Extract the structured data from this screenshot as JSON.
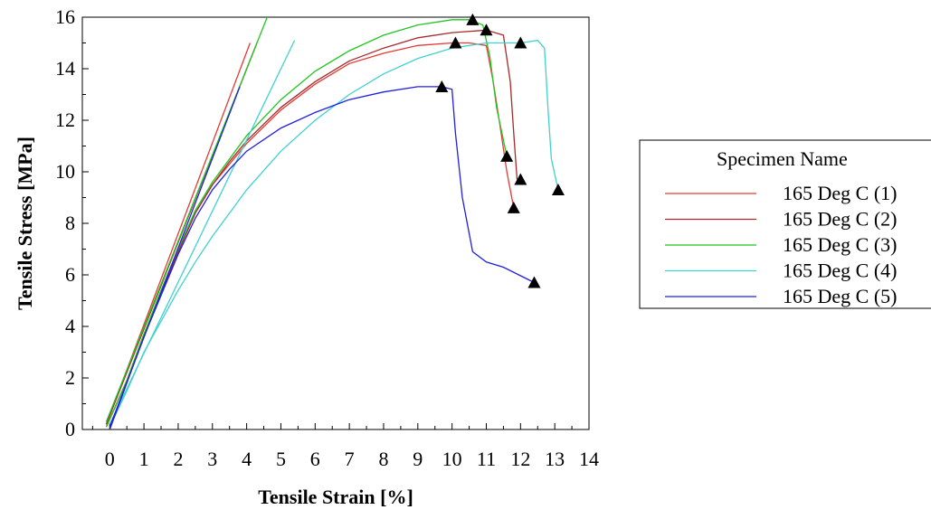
{
  "chart_data": {
    "type": "line",
    "xlabel": "Tensile Strain [%]",
    "ylabel": "Tensile Stress [MPa]",
    "xlim": [
      -0.8,
      14
    ],
    "ylim": [
      0,
      16
    ],
    "x_ticks": [
      0,
      1,
      2,
      3,
      4,
      5,
      6,
      7,
      8,
      9,
      10,
      11,
      12,
      13,
      14
    ],
    "y_ticks": [
      0,
      2,
      4,
      6,
      8,
      10,
      12,
      14,
      16
    ],
    "grid": false,
    "legend": {
      "title": "Specimen Name",
      "position": "right"
    },
    "series": [
      {
        "name": "165 Deg C (1)",
        "color": "#e53935",
        "points": [
          [
            -0.1,
            0.1
          ],
          [
            0.5,
            1.9
          ],
          [
            1.0,
            3.7
          ],
          [
            1.5,
            5.3
          ],
          [
            2.0,
            6.9
          ],
          [
            2.5,
            8.4
          ],
          [
            3.0,
            9.5
          ],
          [
            3.5,
            10.3
          ],
          [
            4.0,
            11.1
          ],
          [
            5.0,
            12.4
          ],
          [
            6.0,
            13.4
          ],
          [
            7.0,
            14.2
          ],
          [
            8.0,
            14.6
          ],
          [
            9.0,
            14.9
          ],
          [
            10.0,
            15.0
          ],
          [
            10.5,
            15.0
          ],
          [
            11.0,
            14.9
          ],
          [
            11.2,
            13.5
          ],
          [
            11.4,
            11.8
          ],
          [
            11.6,
            10.0
          ],
          [
            11.8,
            8.6
          ]
        ],
        "fit_line": [
          [
            -0.1,
            0.2
          ],
          [
            4.1,
            15.0
          ]
        ]
      },
      {
        "name": "165 Deg C (2)",
        "color": "#a52a2a",
        "points": [
          [
            -0.1,
            0.1
          ],
          [
            0.5,
            1.9
          ],
          [
            1.0,
            3.7
          ],
          [
            1.5,
            5.3
          ],
          [
            2.0,
            6.9
          ],
          [
            2.5,
            8.4
          ],
          [
            3.0,
            9.5
          ],
          [
            3.5,
            10.4
          ],
          [
            4.0,
            11.2
          ],
          [
            5.0,
            12.5
          ],
          [
            6.0,
            13.5
          ],
          [
            7.0,
            14.3
          ],
          [
            8.0,
            14.8
          ],
          [
            9.0,
            15.2
          ],
          [
            10.0,
            15.4
          ],
          [
            11.0,
            15.5
          ],
          [
            11.5,
            15.3
          ],
          [
            11.7,
            13.5
          ],
          [
            11.8,
            11.5
          ],
          [
            11.9,
            9.7
          ]
        ],
        "fit_line": [
          [
            -0.1,
            0.2
          ],
          [
            4.3,
            15.0
          ]
        ]
      },
      {
        "name": "165 Deg C (3)",
        "color": "#22c422",
        "points": [
          [
            -0.1,
            0.1
          ],
          [
            0.5,
            1.9
          ],
          [
            1.0,
            3.7
          ],
          [
            1.5,
            5.4
          ],
          [
            2.0,
            7.0
          ],
          [
            2.5,
            8.5
          ],
          [
            3.0,
            9.6
          ],
          [
            3.5,
            10.5
          ],
          [
            4.0,
            11.4
          ],
          [
            5.0,
            12.8
          ],
          [
            6.0,
            13.9
          ],
          [
            7.0,
            14.7
          ],
          [
            8.0,
            15.3
          ],
          [
            9.0,
            15.7
          ],
          [
            10.0,
            15.9
          ],
          [
            10.5,
            15.9
          ],
          [
            10.9,
            15.7
          ],
          [
            11.1,
            14.5
          ],
          [
            11.3,
            12.5
          ],
          [
            11.6,
            10.6
          ]
        ],
        "fit_line": [
          [
            -0.1,
            0.3
          ],
          [
            4.6,
            16.0
          ]
        ]
      },
      {
        "name": "165 Deg C (4)",
        "color": "#40d0d0",
        "points": [
          [
            0.0,
            0.1
          ],
          [
            0.5,
            1.5
          ],
          [
            1.0,
            3.0
          ],
          [
            1.5,
            4.2
          ],
          [
            2.0,
            5.4
          ],
          [
            2.5,
            6.5
          ],
          [
            3.0,
            7.5
          ],
          [
            3.5,
            8.4
          ],
          [
            4.0,
            9.3
          ],
          [
            5.0,
            10.8
          ],
          [
            6.0,
            12.0
          ],
          [
            7.0,
            13.0
          ],
          [
            8.0,
            13.8
          ],
          [
            9.0,
            14.4
          ],
          [
            10.0,
            14.8
          ],
          [
            11.0,
            15.0
          ],
          [
            12.0,
            15.0
          ],
          [
            12.5,
            15.1
          ],
          [
            12.7,
            14.8
          ],
          [
            12.8,
            12.5
          ],
          [
            12.9,
            10.5
          ],
          [
            13.1,
            9.3
          ]
        ],
        "fit_line": [
          [
            0.0,
            0.2
          ],
          [
            5.4,
            15.1
          ]
        ]
      },
      {
        "name": "165 Deg C (5)",
        "color": "#2020dd",
        "points": [
          [
            0.0,
            0.0
          ],
          [
            0.5,
            1.8
          ],
          [
            1.0,
            3.6
          ],
          [
            1.5,
            5.2
          ],
          [
            2.0,
            6.8
          ],
          [
            2.5,
            8.2
          ],
          [
            3.0,
            9.3
          ],
          [
            3.5,
            10.1
          ],
          [
            4.0,
            10.8
          ],
          [
            5.0,
            11.7
          ],
          [
            6.0,
            12.3
          ],
          [
            7.0,
            12.8
          ],
          [
            8.0,
            13.1
          ],
          [
            9.0,
            13.3
          ],
          [
            9.7,
            13.3
          ],
          [
            10.0,
            13.2
          ],
          [
            10.1,
            11.5
          ],
          [
            10.3,
            9.0
          ],
          [
            10.6,
            6.9
          ],
          [
            11.0,
            6.5
          ],
          [
            11.5,
            6.3
          ],
          [
            12.4,
            5.7
          ]
        ],
        "fit_line": [
          [
            0.0,
            0.1
          ],
          [
            3.8,
            13.3
          ]
        ]
      }
    ],
    "markers": [
      [
        10.6,
        15.9
      ],
      [
        11.0,
        15.5
      ],
      [
        10.1,
        15.0
      ],
      [
        12.0,
        15.0
      ],
      [
        9.7,
        13.3
      ],
      [
        11.6,
        10.6
      ],
      [
        12.0,
        9.7
      ],
      [
        11.8,
        8.6
      ],
      [
        13.1,
        9.3
      ],
      [
        12.4,
        5.7
      ]
    ]
  }
}
